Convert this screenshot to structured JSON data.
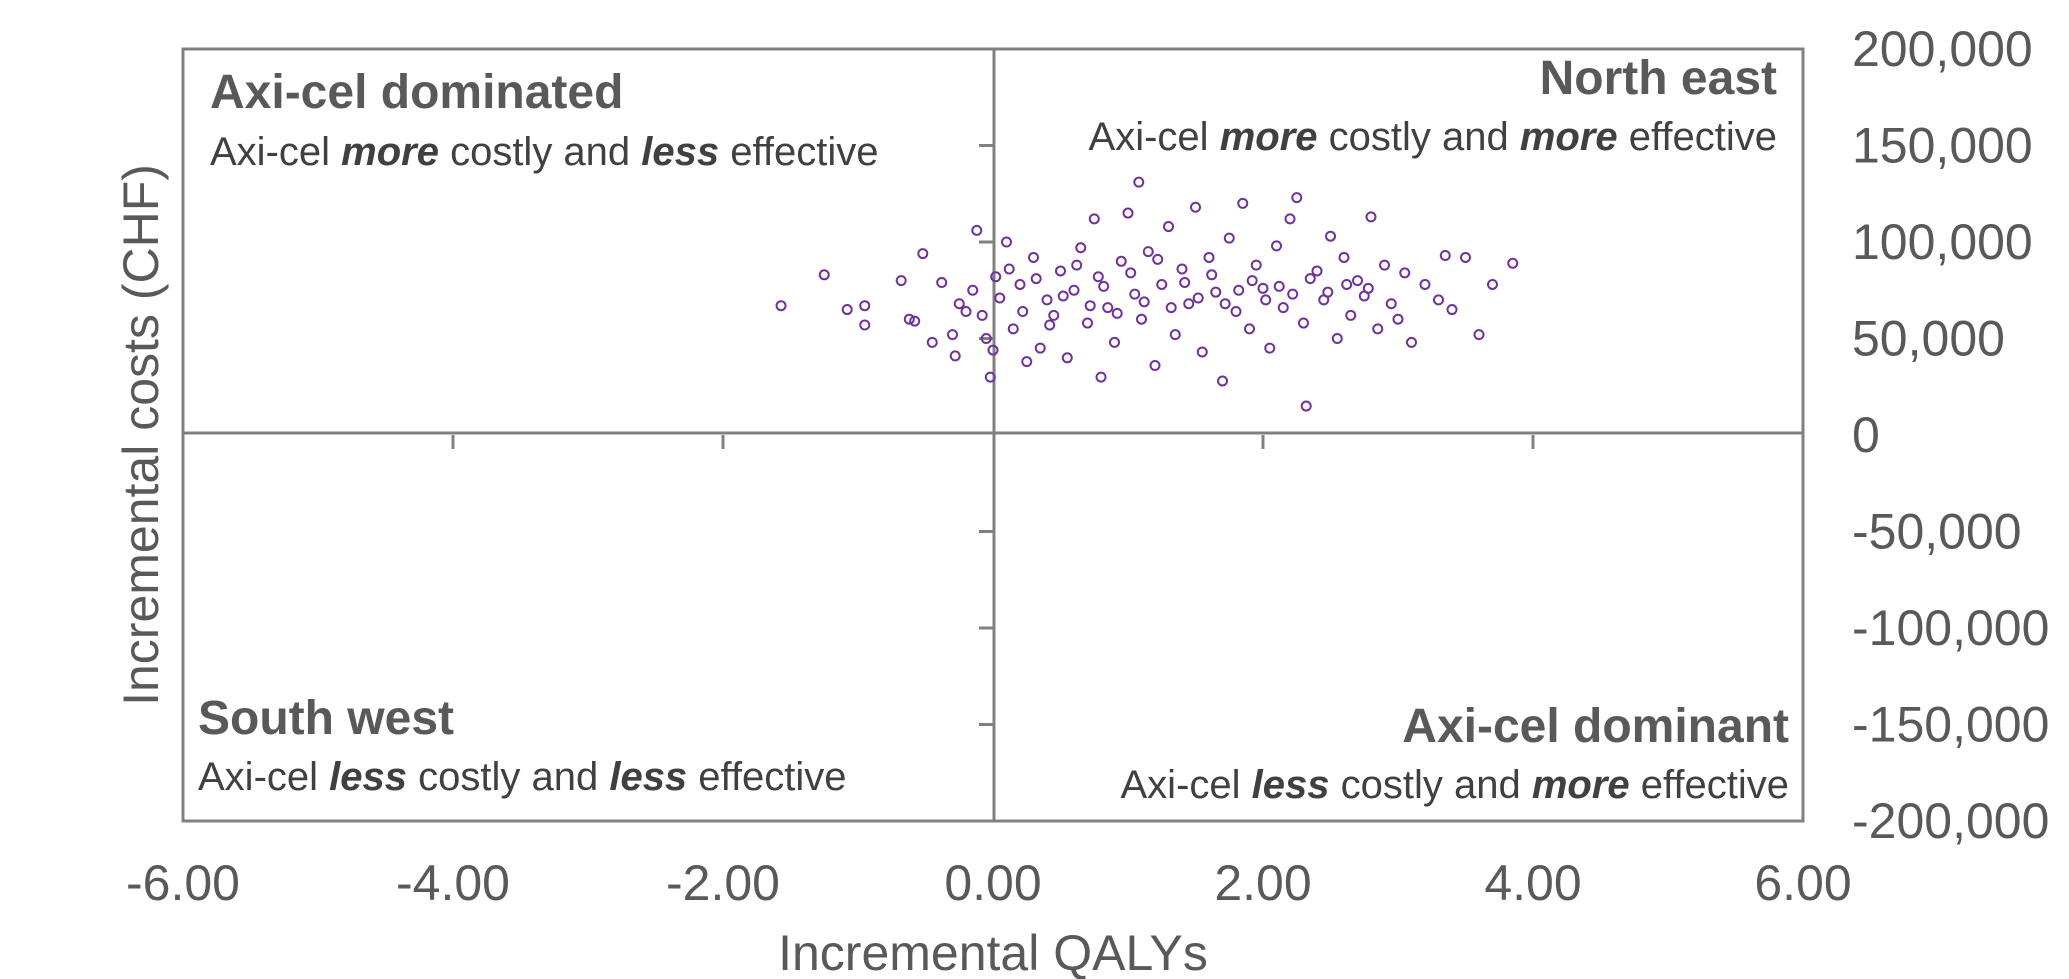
{
  "chart_data": {
    "type": "scatter",
    "xlabel": "Incremental QALYs",
    "ylabel": "Incremental costs (CHF)",
    "xlim": [
      -6,
      6
    ],
    "ylim": [
      -200000,
      200000
    ],
    "x_ticks": [
      "-6.00",
      "-4.00",
      "-2.00",
      "0.00",
      "2.00",
      "4.00",
      "6.00"
    ],
    "y_ticks": [
      "200,000",
      "150,000",
      "100,000",
      "50,000",
      "0",
      "-50,000",
      "-100,000",
      "-150,000",
      "-200,000"
    ],
    "grid": false,
    "marker": "open-circle",
    "color": "#7030A0",
    "quadrants": {
      "nw": {
        "title": "Axi-cel dominated",
        "desc_1": "Axi-cel ",
        "desc_em1": "more",
        "desc_2": " costly and ",
        "desc_em2": "less",
        "desc_3": " effective"
      },
      "ne": {
        "title": "North east",
        "desc_1": "Axi-cel ",
        "desc_em1": "more",
        "desc_2": " costly and ",
        "desc_em2": "more",
        "desc_3": " effective"
      },
      "sw": {
        "title": "South west",
        "desc_1": "Axi-cel ",
        "desc_em1": "less",
        "desc_2": " costly and ",
        "desc_em2": "less",
        "desc_3": " effective"
      },
      "se": {
        "title": "Axi-cel dominant",
        "desc_1": "Axi-cel ",
        "desc_em1": "less",
        "desc_2": " costly and ",
        "desc_em2": "more",
        "desc_3": " effective"
      }
    },
    "points": [
      [
        -1.57,
        67000
      ],
      [
        -1.25,
        83000
      ],
      [
        -1.08,
        65000
      ],
      [
        -0.95,
        67000
      ],
      [
        -0.95,
        57000
      ],
      [
        -0.68,
        80000
      ],
      [
        -0.62,
        60000
      ],
      [
        -0.58,
        59000
      ],
      [
        -0.52,
        94000
      ],
      [
        -0.45,
        48000
      ],
      [
        -0.38,
        79000
      ],
      [
        -0.3,
        52000
      ],
      [
        -0.28,
        41000
      ],
      [
        -0.2,
        64000
      ],
      [
        -0.12,
        106000
      ],
      [
        -0.05,
        50000
      ],
      [
        0.0,
        44000
      ],
      [
        -0.02,
        30000
      ],
      [
        0.1,
        100000
      ],
      [
        0.15,
        55000
      ],
      [
        0.2,
        78000
      ],
      [
        0.25,
        38000
      ],
      [
        0.3,
        92000
      ],
      [
        0.35,
        45000
      ],
      [
        0.4,
        70000
      ],
      [
        0.45,
        62000
      ],
      [
        0.5,
        85000
      ],
      [
        0.55,
        40000
      ],
      [
        0.6,
        75000
      ],
      [
        0.65,
        97000
      ],
      [
        0.7,
        58000
      ],
      [
        0.75,
        112000
      ],
      [
        0.78,
        82000
      ],
      [
        0.8,
        30000
      ],
      [
        0.85,
        66000
      ],
      [
        0.9,
        48000
      ],
      [
        0.95,
        90000
      ],
      [
        1.0,
        115000
      ],
      [
        1.05,
        73000
      ],
      [
        1.08,
        131000
      ],
      [
        1.1,
        60000
      ],
      [
        1.15,
        95000
      ],
      [
        1.2,
        36000
      ],
      [
        1.25,
        78000
      ],
      [
        1.3,
        108000
      ],
      [
        1.35,
        52000
      ],
      [
        1.4,
        86000
      ],
      [
        1.45,
        68000
      ],
      [
        1.5,
        118000
      ],
      [
        1.55,
        43000
      ],
      [
        1.6,
        92000
      ],
      [
        1.65,
        74000
      ],
      [
        1.7,
        28000
      ],
      [
        1.75,
        102000
      ],
      [
        1.8,
        64000
      ],
      [
        1.85,
        120000
      ],
      [
        1.9,
        55000
      ],
      [
        1.95,
        88000
      ],
      [
        2.0,
        76000
      ],
      [
        2.05,
        45000
      ],
      [
        2.1,
        98000
      ],
      [
        2.15,
        66000
      ],
      [
        2.2,
        112000
      ],
      [
        2.25,
        123000
      ],
      [
        2.3,
        58000
      ],
      [
        2.32,
        15000
      ],
      [
        2.4,
        85000
      ],
      [
        2.45,
        70000
      ],
      [
        2.5,
        103000
      ],
      [
        2.55,
        50000
      ],
      [
        2.6,
        92000
      ],
      [
        2.65,
        62000
      ],
      [
        2.7,
        80000
      ],
      [
        2.75,
        72000
      ],
      [
        2.8,
        113000
      ],
      [
        2.85,
        55000
      ],
      [
        2.9,
        88000
      ],
      [
        2.95,
        68000
      ],
      [
        3.0,
        60000
      ],
      [
        3.05,
        84000
      ],
      [
        3.1,
        48000
      ],
      [
        3.2,
        78000
      ],
      [
        3.3,
        70000
      ],
      [
        3.35,
        93000
      ],
      [
        3.4,
        65000
      ],
      [
        3.5,
        92000
      ],
      [
        3.6,
        52000
      ],
      [
        3.7,
        78000
      ],
      [
        3.85,
        89000
      ],
      [
        0.05,
        71000
      ],
      [
        0.12,
        86000
      ],
      [
        0.22,
        64000
      ],
      [
        0.32,
        81000
      ],
      [
        0.42,
        57000
      ],
      [
        0.52,
        72000
      ],
      [
        0.62,
        88000
      ],
      [
        0.72,
        67000
      ],
      [
        0.82,
        77000
      ],
      [
        0.92,
        63000
      ],
      [
        1.02,
        84000
      ],
      [
        1.12,
        69000
      ],
      [
        1.22,
        91000
      ],
      [
        1.32,
        66000
      ],
      [
        1.42,
        79000
      ],
      [
        1.52,
        71000
      ],
      [
        1.62,
        83000
      ],
      [
        1.72,
        68000
      ],
      [
        1.82,
        75000
      ],
      [
        1.92,
        80000
      ],
      [
        2.02,
        70000
      ],
      [
        2.12,
        77000
      ],
      [
        2.22,
        73000
      ],
      [
        2.35,
        81000
      ],
      [
        2.48,
        74000
      ],
      [
        2.62,
        78000
      ],
      [
        2.78,
        76000
      ],
      [
        -0.25,
        68000
      ],
      [
        -0.15,
        75000
      ],
      [
        -0.08,
        62000
      ],
      [
        0.02,
        82000
      ]
    ]
  }
}
